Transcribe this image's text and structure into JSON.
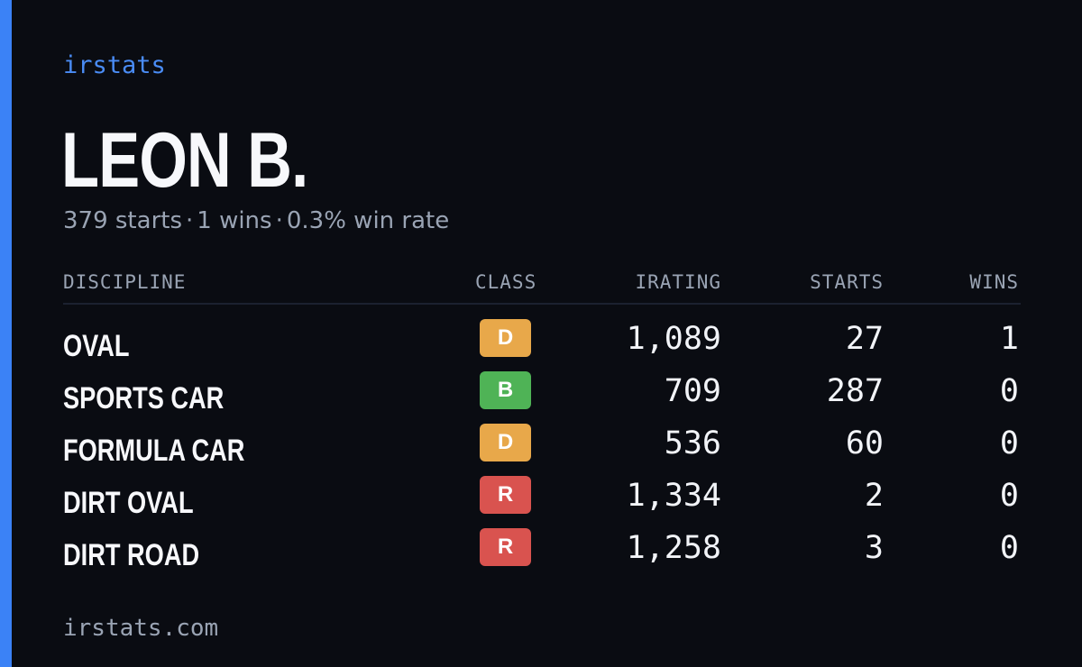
{
  "brand": "irstats",
  "driver": {
    "name": "LEON B."
  },
  "summary": {
    "starts": "379 starts",
    "wins": "1 wins",
    "win_rate": "0.3% win rate",
    "separator": "·"
  },
  "table": {
    "headers": {
      "discipline": "DISCIPLINE",
      "class": "CLASS",
      "irating": "IRATING",
      "starts": "STARTS",
      "wins": "WINS"
    },
    "rows": [
      {
        "discipline": "OVAL",
        "class": "D",
        "irating": "1,089",
        "starts": "27",
        "wins": "1",
        "class_color": "#e8a84a"
      },
      {
        "discipline": "SPORTS CAR",
        "class": "B",
        "irating": "709",
        "starts": "287",
        "wins": "0",
        "class_color": "#4fb356"
      },
      {
        "discipline": "FORMULA CAR",
        "class": "D",
        "irating": "536",
        "starts": "60",
        "wins": "0",
        "class_color": "#e8a84a"
      },
      {
        "discipline": "DIRT OVAL",
        "class": "R",
        "irating": "1,334",
        "starts": "2",
        "wins": "0",
        "class_color": "#d9534f"
      },
      {
        "discipline": "DIRT ROAD",
        "class": "R",
        "irating": "1,258",
        "starts": "3",
        "wins": "0",
        "class_color": "#d9534f"
      }
    ]
  },
  "footer": "irstats.com",
  "colors": {
    "accent": "#3b82f6",
    "background": "#0a0c12"
  }
}
